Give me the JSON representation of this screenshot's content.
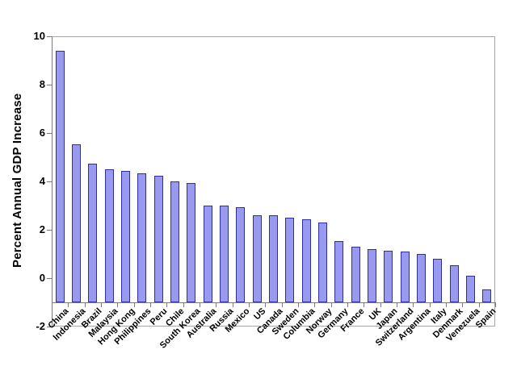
{
  "chart_data": {
    "type": "bar",
    "title": "",
    "xlabel": "",
    "ylabel": "Percent Annual GDP Increase",
    "categories": [
      "China",
      "Indonesia",
      "Brazil",
      "Malaysia",
      "Hong Kong",
      "Philippines",
      "Peru",
      "Chile",
      "South Korea",
      "Australia",
      "Russia",
      "Mexico",
      "US",
      "Canada",
      "Sweden",
      "Columbia",
      "Norway",
      "Germany",
      "France",
      "UK",
      "Japan",
      "Switzerland",
      "Argentina",
      "Italy",
      "Denmark",
      "Venezuela",
      "Spain"
    ],
    "values": [
      9.4,
      5.55,
      4.75,
      4.5,
      4.45,
      4.35,
      4.25,
      4.0,
      3.95,
      3.0,
      3.0,
      2.95,
      2.6,
      2.6,
      2.5,
      2.45,
      2.3,
      1.55,
      1.3,
      1.2,
      1.15,
      1.1,
      1.0,
      0.8,
      0.55,
      0.1,
      -0.45
    ],
    "y_ticks": [
      10,
      8,
      6,
      4,
      2,
      0,
      -2
    ],
    "ylim": [
      -2,
      10
    ],
    "bar_baseline": -1,
    "x_tick_rotation_deg": -45,
    "grid": false,
    "legend": null,
    "bar_color": "#9999f0",
    "bar_border_color": "#2e2e9c",
    "axis_color": "#7a7a7a",
    "plot_border_color": "#a6a6a6",
    "text_color": "#000000",
    "background_color": "#ffffff"
  }
}
